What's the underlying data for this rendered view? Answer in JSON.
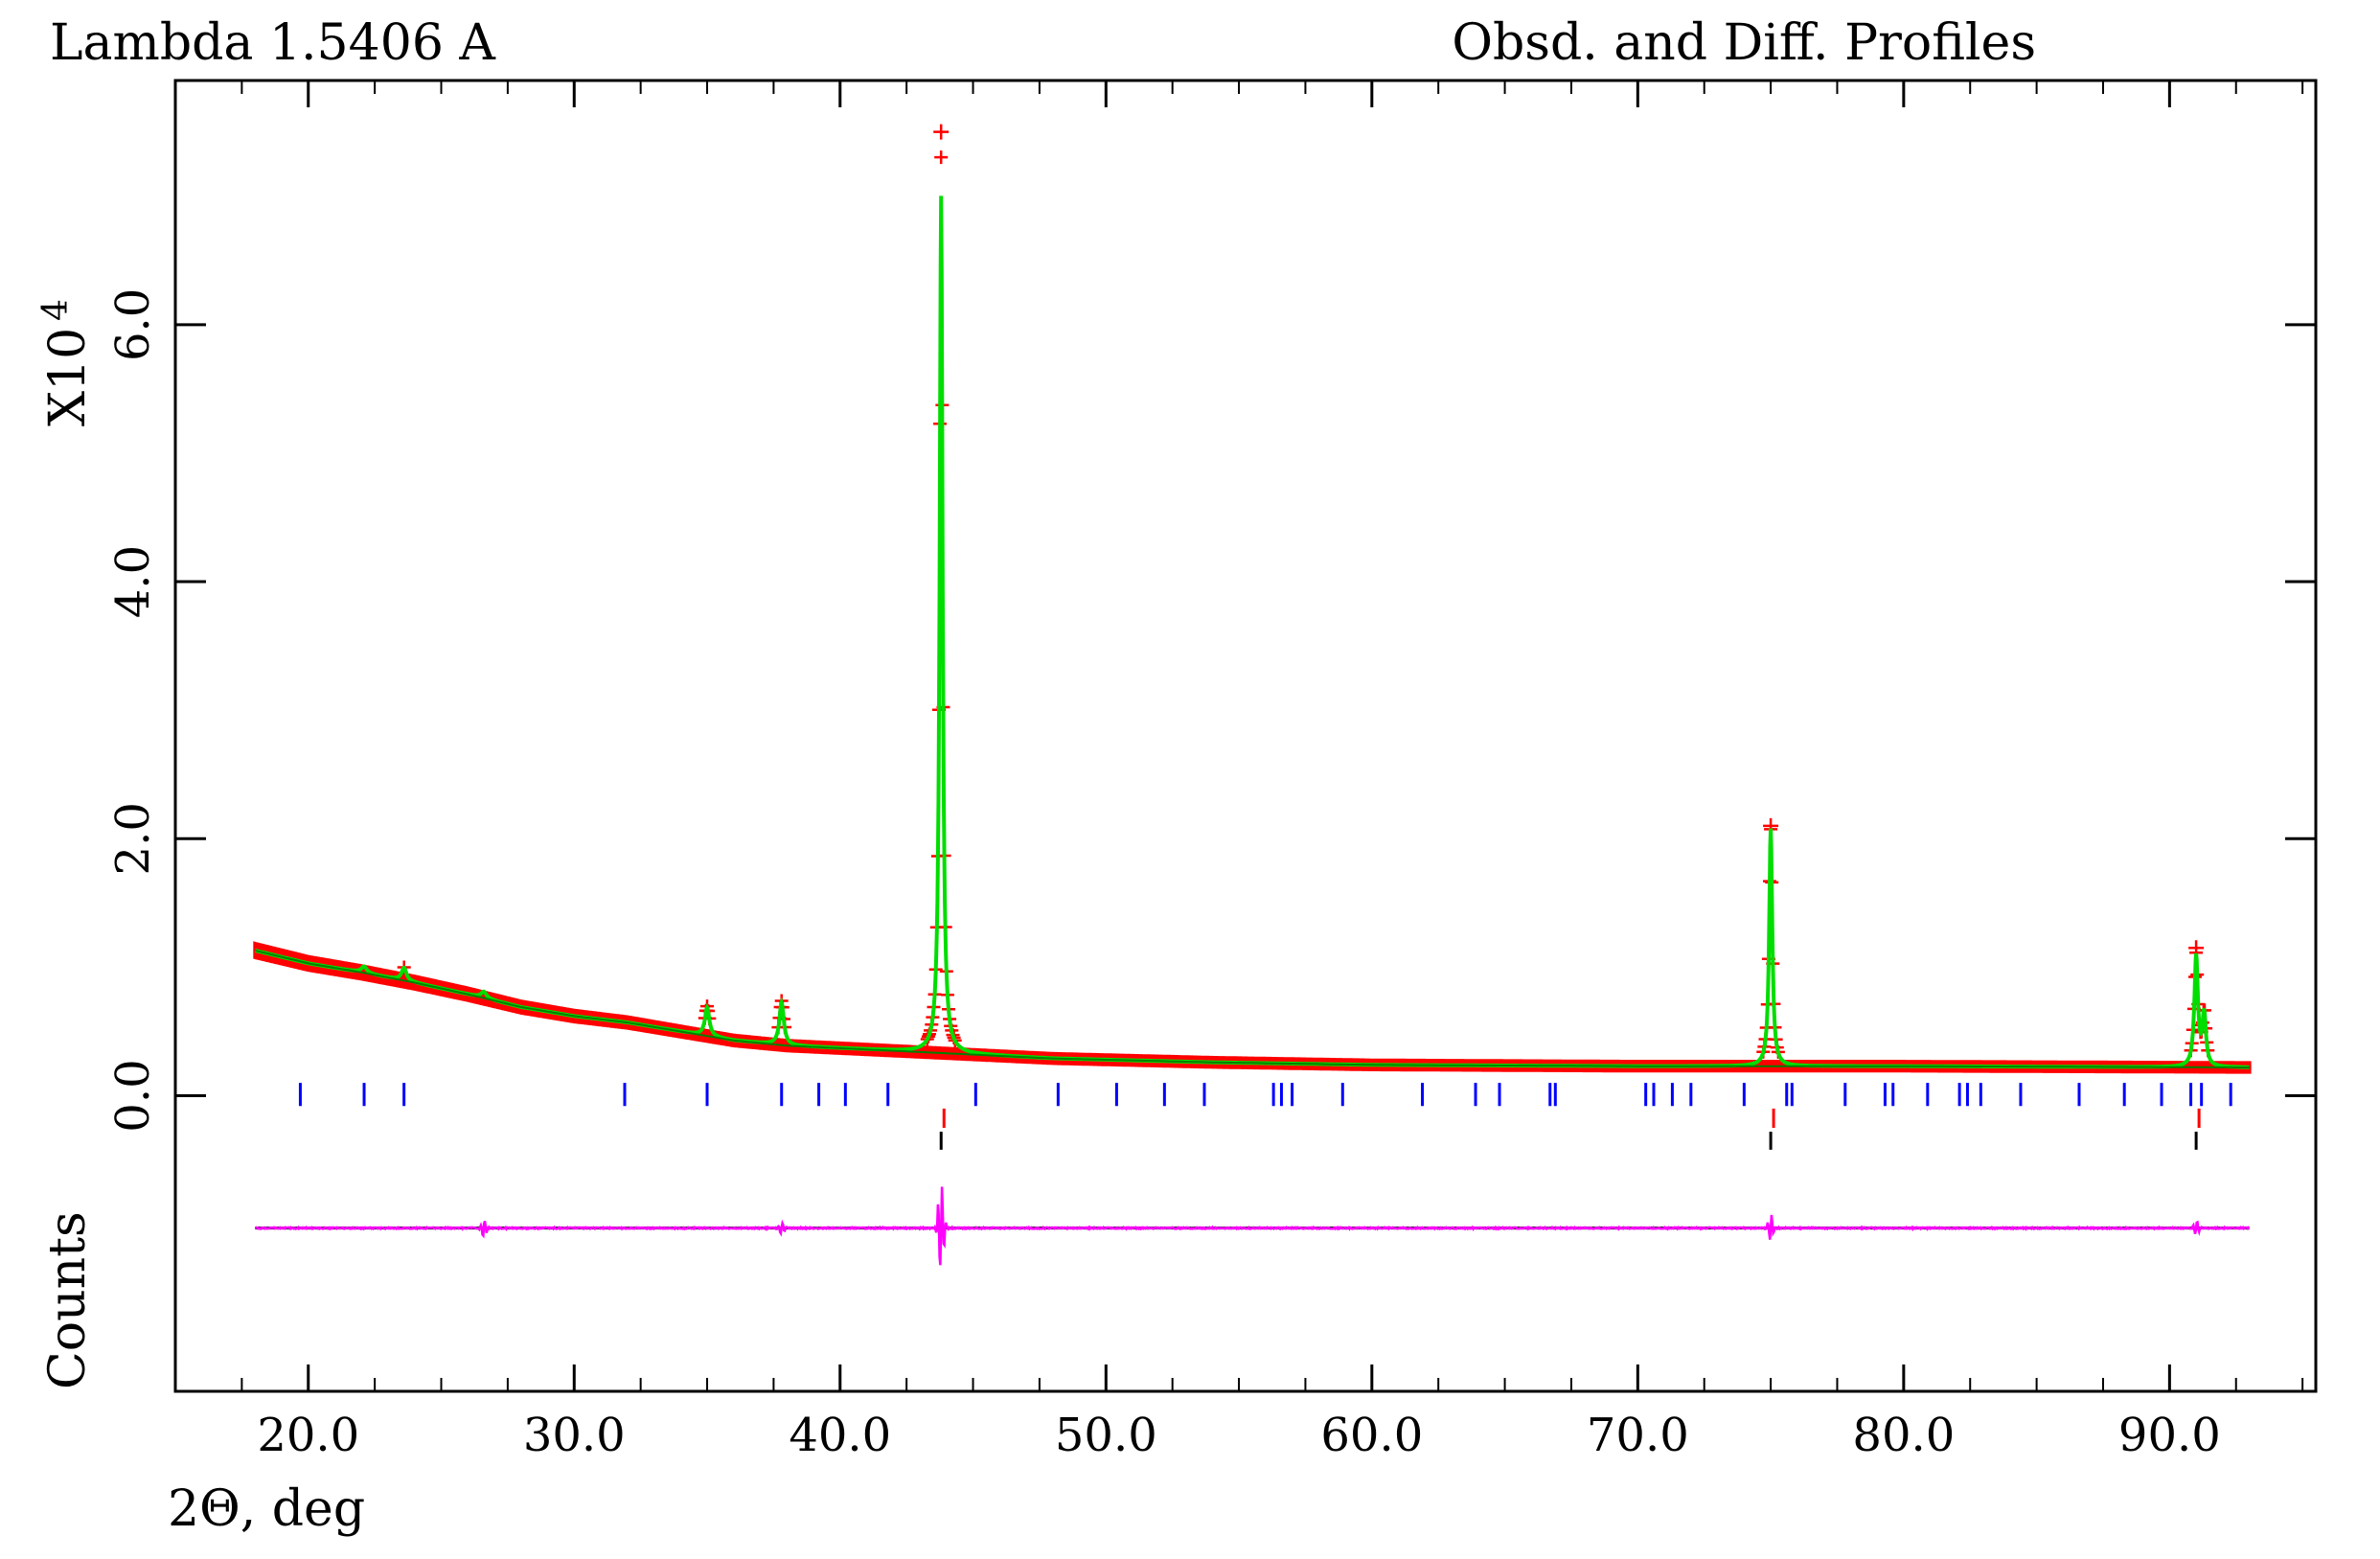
{
  "header": {
    "left": "Lambda 1.5406 A",
    "right": "Obsd. and Diff. Profiles"
  },
  "y_axis": {
    "multiplier_base": "X10",
    "multiplier_exp": "4",
    "label": "Counts"
  },
  "x_axis": {
    "label": "2Θ, deg"
  },
  "colors": {
    "observed": "#ff0000",
    "calculated": "#00dd00",
    "background": "#008000",
    "difference": "#ff00ff",
    "zero_line": "#000000",
    "phase1_ticks": "#0000ff",
    "phase2_ticks_red": "#ff0000",
    "phase2_ticks_black": "#000000",
    "frame": "#000000"
  },
  "chart_data": {
    "type": "scatter",
    "title": "Obsd. and Diff. Profiles",
    "xlabel": "2Θ, deg",
    "ylabel": "Counts",
    "y_multiplier": 10000,
    "xlim": [
      15.0,
      95.5
    ],
    "ylim": [
      -2.3,
      7.9
    ],
    "x_ticks": [
      20.0,
      30.0,
      40.0,
      50.0,
      60.0,
      70.0,
      80.0,
      90.0
    ],
    "x_tick_labels": [
      "20.0",
      "30.0",
      "40.0",
      "50.0",
      "60.0",
      "70.0",
      "80.0",
      "90.0"
    ],
    "y_ticks": [
      0.0,
      2.0,
      4.0,
      6.0
    ],
    "y_tick_labels": [
      "0.0",
      "2.0",
      "4.0",
      "6.0"
    ],
    "x_range": [
      18.0,
      93.0
    ],
    "background": [
      [
        18.0,
        1.13
      ],
      [
        20.0,
        1.03
      ],
      [
        22.0,
        0.96
      ],
      [
        24.0,
        0.88
      ],
      [
        26.0,
        0.79
      ],
      [
        28.0,
        0.69
      ],
      [
        30.0,
        0.62
      ],
      [
        32.0,
        0.57
      ],
      [
        34.0,
        0.5
      ],
      [
        36.0,
        0.43
      ],
      [
        38.0,
        0.39
      ],
      [
        40.0,
        0.37
      ],
      [
        42.0,
        0.35
      ],
      [
        44.0,
        0.33
      ],
      [
        46.0,
        0.31
      ],
      [
        48.0,
        0.29
      ],
      [
        50.0,
        0.28
      ],
      [
        54.0,
        0.26
      ],
      [
        60.0,
        0.24
      ],
      [
        70.0,
        0.23
      ],
      [
        80.0,
        0.23
      ],
      [
        93.0,
        0.22
      ]
    ],
    "peaks": [
      {
        "center": 22.1,
        "height": 0.05,
        "width": 0.25
      },
      {
        "center": 23.6,
        "height": 0.1,
        "width": 0.22
      },
      {
        "center": 26.6,
        "height": 0.05,
        "width": 0.25
      },
      {
        "center": 35.0,
        "height": 0.22,
        "width": 0.2
      },
      {
        "center": 37.8,
        "height": 0.33,
        "width": 0.2
      },
      {
        "center": 43.8,
        "height": 6.67,
        "width": 0.13
      },
      {
        "center": 75.0,
        "height": 1.85,
        "width": 0.14
      },
      {
        "center": 91.0,
        "height": 0.86,
        "width": 0.16
      },
      {
        "center": 91.3,
        "height": 0.4,
        "width": 0.16
      }
    ],
    "observed_peak_maxima": [
      {
        "x": 43.8,
        "y": 7.5
      },
      {
        "x": 75.0,
        "y": 2.1
      },
      {
        "x": 91.0,
        "y": 1.15
      }
    ],
    "difference_offset": -1.03,
    "difference_features": [
      {
        "center": 26.6,
        "amplitude": 0.07
      },
      {
        "center": 37.8,
        "amplitude": 0.05
      },
      {
        "center": 43.8,
        "amplitude": 0.42
      },
      {
        "center": 75.0,
        "amplitude": 0.1
      },
      {
        "center": 91.0,
        "amplitude": 0.06
      }
    ],
    "reflection_ticks_phase1": [
      19.7,
      22.1,
      23.6,
      31.9,
      35.0,
      37.8,
      39.2,
      40.2,
      41.8,
      45.1,
      48.2,
      50.4,
      52.2,
      53.7,
      56.3,
      56.6,
      57.0,
      58.9,
      61.9,
      63.9,
      64.8,
      66.7,
      66.9,
      70.3,
      70.6,
      71.3,
      72.0,
      74.0,
      75.6,
      75.8,
      77.8,
      79.3,
      79.6,
      80.9,
      82.1,
      82.4,
      82.9,
      84.4,
      86.6,
      88.3,
      89.7,
      90.8,
      91.2,
      92.3
    ],
    "reflection_ticks_phase2": [
      43.8,
      75.0,
      91.0
    ]
  }
}
